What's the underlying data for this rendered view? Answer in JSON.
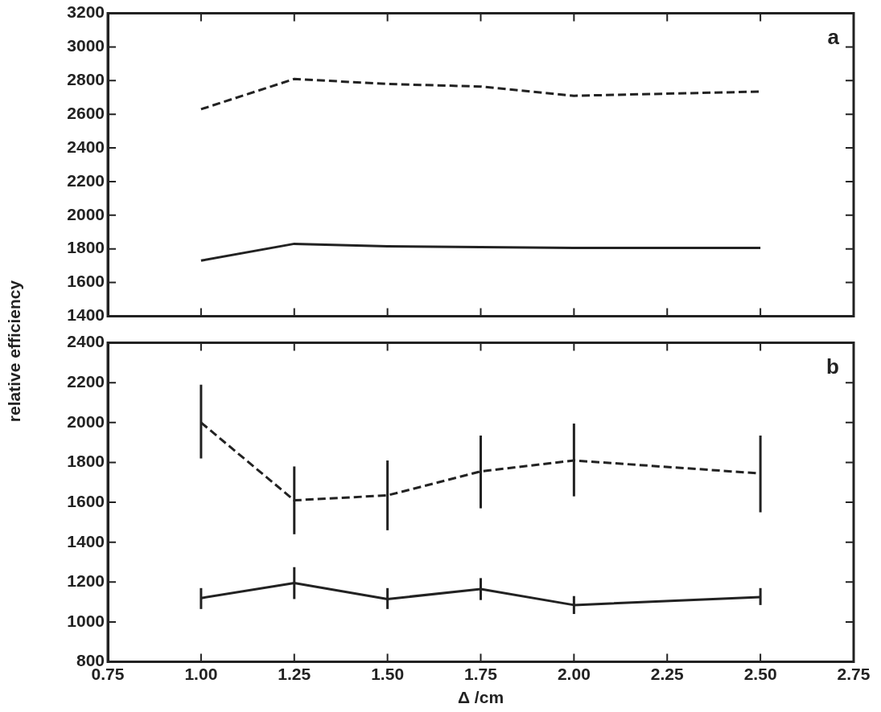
{
  "chart_data": [
    {
      "type": "line",
      "ylabel": "relative efficiency",
      "annotations": [
        "a"
      ],
      "x": [
        1.0,
        1.25,
        1.5,
        1.75,
        2.0,
        2.5
      ],
      "series": [
        {
          "color": "#222222",
          "line_style": "solid",
          "values": [
            1730,
            1830,
            1815,
            1810,
            1805,
            1805
          ]
        },
        {
          "color": "#222222",
          "line_style": "dashed",
          "values": [
            2630,
            2810,
            2780,
            2765,
            2710,
            2735
          ]
        }
      ],
      "xlim": [
        0.75,
        2.75
      ],
      "xticks": [
        0.75,
        1.0,
        1.25,
        1.5,
        1.75,
        2.0,
        2.25,
        2.5,
        2.75
      ],
      "ylim": [
        1400,
        3200
      ],
      "yticks": [
        1400,
        1600,
        1800,
        2000,
        2200,
        2400,
        2600,
        2800,
        3000,
        3200
      ],
      "tick_labels": "y",
      "grid": false,
      "legend": false,
      "marker": "none"
    },
    {
      "type": "line",
      "xlabel": "Δ /cm",
      "annotations": [
        "b"
      ],
      "x": [
        1.0,
        1.25,
        1.5,
        1.75,
        2.0,
        2.5
      ],
      "series": [
        {
          "color": "#222222",
          "line_style": "solid",
          "values": [
            1120,
            1195,
            1115,
            1165,
            1085,
            1125
          ],
          "errors": [
            [
              1065,
              1170
            ],
            [
              1115,
              1275
            ],
            [
              1065,
              1170
            ],
            [
              1110,
              1220
            ],
            [
              1040,
              1130
            ],
            [
              1085,
              1170
            ]
          ]
        },
        {
          "color": "#222222",
          "line_style": "dashed",
          "values": [
            2000,
            1610,
            1635,
            1755,
            1810,
            1745
          ],
          "errors": [
            [
              1820,
              2190
            ],
            [
              1440,
              1780
            ],
            [
              1460,
              1810
            ],
            [
              1570,
              1935
            ],
            [
              1630,
              1995
            ],
            [
              1550,
              1935
            ]
          ]
        }
      ],
      "xlim": [
        0.75,
        2.75
      ],
      "xticks": [
        {
          "value": 0.75,
          "label": "0.75"
        },
        {
          "value": 1.0,
          "label": "1.00"
        },
        {
          "value": 1.25,
          "label": "1.25"
        },
        {
          "value": 1.5,
          "label": "1.50"
        },
        {
          "value": 1.75,
          "label": "1.75"
        },
        {
          "value": 2.0,
          "label": "2.00"
        },
        {
          "value": 2.25,
          "label": "2.25"
        },
        {
          "value": 2.5,
          "label": "2.50"
        },
        {
          "value": 2.75,
          "label": "2.75"
        }
      ],
      "ylim": [
        800,
        2400
      ],
      "yticks": [
        800,
        1000,
        1200,
        1400,
        1600,
        1800,
        2000,
        2200,
        2400
      ],
      "grid": false,
      "legend": false,
      "marker": "none"
    }
  ]
}
